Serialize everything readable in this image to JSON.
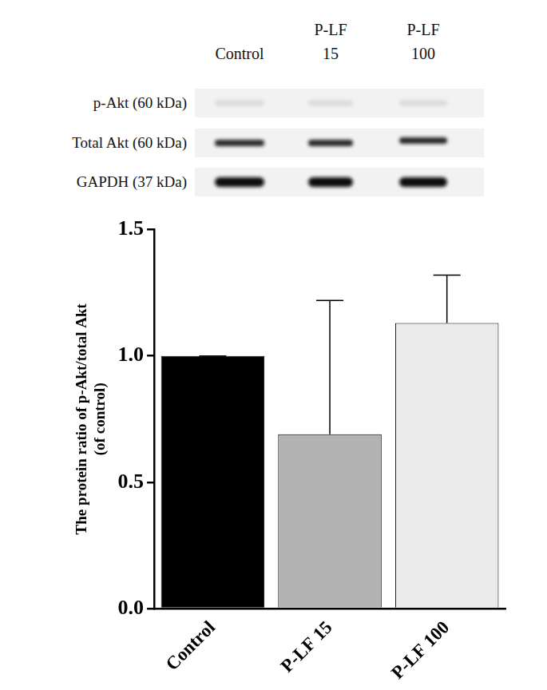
{
  "blot": {
    "lanes": [
      [
        "Control"
      ],
      [
        "P-LF",
        "15"
      ],
      [
        "P-LF",
        "100"
      ]
    ],
    "rows": [
      "p-Akt (60 kDa)",
      "Total Akt (60 kDa)",
      "GAPDH (37 kDa)"
    ]
  },
  "chart_data": {
    "type": "bar",
    "categories": [
      "Control",
      "P-LF 15",
      "P-LF 100"
    ],
    "values": [
      1.0,
      0.69,
      1.13
    ],
    "errors": [
      0,
      0.53,
      0.19
    ],
    "colors": [
      "#000000",
      "#b3b3b3",
      "#ebebeb"
    ],
    "y_label": [
      "The protein ratio of p-Akt/total Akt",
      "(of control)"
    ],
    "ylim": [
      0,
      1.5
    ],
    "yticks": [
      {
        "value": 0,
        "label": "0.0"
      },
      {
        "value": 0.5,
        "label": "0.5"
      },
      {
        "value": 1,
        "label": "1.0"
      },
      {
        "value": 1.5,
        "label": "1.5"
      }
    ],
    "grid": false
  }
}
